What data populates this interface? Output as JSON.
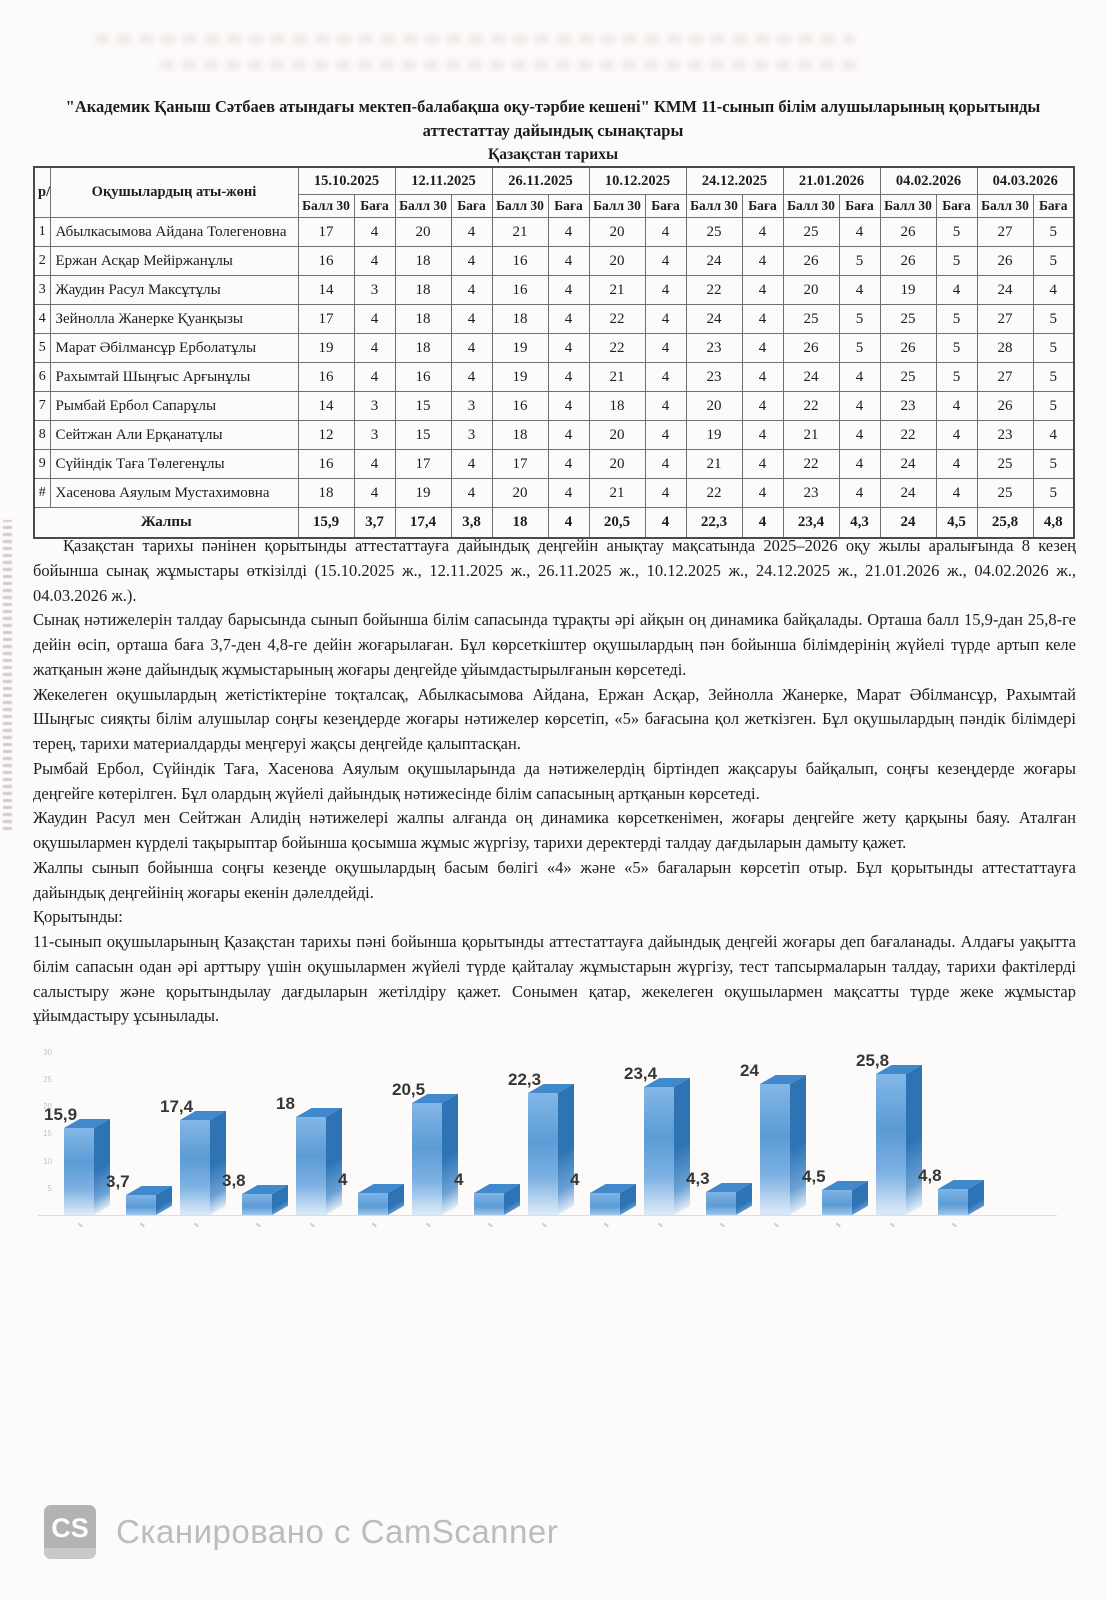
{
  "page": {
    "title_line1": "\"Академик Қаныш Сәтбаев атындағы мектеп-балабақша оқу-тәрбие кешені\" КММ  11-сынып білім алушыларының қорытынды",
    "title_line2": "аттестаттау  дайындық сынақтары",
    "subject": "Қазақстан тарихы"
  },
  "table": {
    "col_num": "р/с",
    "col_name": "Оқушылардың аты-жөні",
    "dates": [
      "15.10.2025",
      "12.11.2025",
      "26.11.2025",
      "10.12.2025",
      "24.12.2025",
      "21.01.2026",
      "04.02.2026",
      "04.03.2026"
    ],
    "sub_score": "Балл 30",
    "sub_grade": "Баға",
    "rows": [
      {
        "num": "1",
        "name": "Абылкасымова Айдана Толегеновна",
        "cells": [
          "17",
          "4",
          "20",
          "4",
          "21",
          "4",
          "20",
          "4",
          "25",
          "4",
          "25",
          "4",
          "26",
          "5",
          "27",
          "5"
        ]
      },
      {
        "num": "2",
        "name": "Ержан Асқар Мейіржанұлы",
        "cells": [
          "16",
          "4",
          "18",
          "4",
          "16",
          "4",
          "20",
          "4",
          "24",
          "4",
          "26",
          "5",
          "26",
          "5",
          "26",
          "5"
        ]
      },
      {
        "num": "3",
        "name": "Жаудин Расул Максұтұлы",
        "cells": [
          "14",
          "3",
          "18",
          "4",
          "16",
          "4",
          "21",
          "4",
          "22",
          "4",
          "20",
          "4",
          "19",
          "4",
          "24",
          "4"
        ]
      },
      {
        "num": "4",
        "name": "Зейнолла Жанерке Қуанқызы",
        "cells": [
          "17",
          "4",
          "18",
          "4",
          "18",
          "4",
          "22",
          "4",
          "24",
          "4",
          "25",
          "5",
          "25",
          "5",
          "27",
          "5"
        ]
      },
      {
        "num": "5",
        "name": "Марат Әбілмансұр Ерболатұлы",
        "cells": [
          "19",
          "4",
          "18",
          "4",
          "19",
          "4",
          "22",
          "4",
          "23",
          "4",
          "26",
          "5",
          "26",
          "5",
          "28",
          "5"
        ]
      },
      {
        "num": "6",
        "name": "Рахымтай Шыңғыс Арғынұлы",
        "cells": [
          "16",
          "4",
          "16",
          "4",
          "19",
          "4",
          "21",
          "4",
          "23",
          "4",
          "24",
          "4",
          "25",
          "5",
          "27",
          "5"
        ]
      },
      {
        "num": "7",
        "name": "Рымбай Ербол Сапарұлы",
        "cells": [
          "14",
          "3",
          "15",
          "3",
          "16",
          "4",
          "18",
          "4",
          "20",
          "4",
          "22",
          "4",
          "23",
          "4",
          "26",
          "5"
        ]
      },
      {
        "num": "8",
        "name": "Сейтжан Али Ерқанатұлы",
        "cells": [
          "12",
          "3",
          "15",
          "3",
          "18",
          "4",
          "20",
          "4",
          "19",
          "4",
          "21",
          "4",
          "22",
          "4",
          "23",
          "4"
        ]
      },
      {
        "num": "9",
        "name": "Сүйіндік Таға Төлегенұлы",
        "cells": [
          "16",
          "4",
          "17",
          "4",
          "17",
          "4",
          "20",
          "4",
          "21",
          "4",
          "22",
          "4",
          "24",
          "4",
          "25",
          "5"
        ]
      },
      {
        "num": "#",
        "name": "Хасенова Аяулым Мустахимовна",
        "cells": [
          "18",
          "4",
          "19",
          "4",
          "20",
          "4",
          "21",
          "4",
          "22",
          "4",
          "23",
          "4",
          "24",
          "4",
          "25",
          "5"
        ]
      }
    ],
    "total_label": "Жалпы",
    "totals": [
      "15,9",
      "3,7",
      "17,4",
      "3,8",
      "18",
      "4",
      "20,5",
      "4",
      "22,3",
      "4",
      "23,4",
      "4,3",
      "24",
      "4,5",
      "25,8",
      "4,8"
    ]
  },
  "report": {
    "paragraphs": [
      {
        "indent": true,
        "text": "Қазақстан тарихы пәнінен қорытынды аттестаттауға дайындық деңгейін анықтау мақсатында 2025–2026 оқу жылы аралығында 8 кезең бойынша сынақ жұмыстары өткізілді (15.10.2025 ж., 12.11.2025 ж., 26.11.2025 ж., 10.12.2025 ж., 24.12.2025 ж., 21.01.2026 ж., 04.02.2026 ж., 04.03.2026 ж.)."
      },
      {
        "indent": false,
        "text": "Сынақ нәтижелерін талдау барысында сынып бойынша білім сапасында тұрақты әрі айқын оң динамика байқалады. Орташа балл 15,9-дан 25,8-ге дейін өсіп, орташа баға 3,7-ден 4,8-ге дейін жоғарылаған. Бұл көрсеткіштер оқушылардың пән бойынша білімдерінің жүйелі түрде артып келе жатқанын және дайындық жұмыстарының жоғары деңгейде ұйымдастырылғанын көрсетеді."
      },
      {
        "indent": false,
        "text": "Жекелеген оқушылардың жетістіктеріне тоқталсақ, Абылкасымова Айдана, Ержан Асқар, Зейнолла Жанерке, Марат Әбілмансұр, Рахымтай Шыңғыс сияқты білім алушылар соңғы кезеңдерде жоғары нәтижелер көрсетіп, «5» бағасына қол жеткізген. Бұл оқушылардың пәндік білімдері терең, тарихи материалдарды меңгеруі жақсы деңгейде қалыптасқан."
      },
      {
        "indent": false,
        "text": "Рымбай Ербол, Сүйіндік Таға, Хасенова Аяулым оқушыларында да нәтижелердің біртіндеп жақсаруы байқалып, соңғы кезеңдерде жоғары деңгейге көтерілген. Бұл олардың жүйелі дайындық нәтижесінде білім сапасының артқанын көрсетеді."
      },
      {
        "indent": false,
        "text": "Жаудин Расул мен Сейтжан Алидің нәтижелері жалпы алғанда оң динамика көрсеткенімен, жоғары деңгейге жету қарқыны баяу. Аталған оқушылармен күрделі тақырыптар бойынша қосымша жұмыс жүргізу, тарихи деректерді талдау дағдыларын дамыту қажет."
      },
      {
        "indent": false,
        "text": "Жалпы сынып бойынша соңғы кезеңде оқушылардың басым бөлігі «4» және «5» бағаларын көрсетіп отыр. Бұл қорытынды аттестаттауға дайындық деңгейінің жоғары екенін дәлелдейді."
      },
      {
        "indent": false,
        "text": "Қорытынды:"
      },
      {
        "indent": false,
        "text": "11-сынып оқушыларының Қазақстан тарихы пәні бойынша қорытынды аттестаттауға дайындық деңгейі жоғары деп бағаланады. Алдағы уақытта білім сапасын одан әрі арттыру үшін оқушылармен жүйелі түрде қайталау жұмыстарын жүргізу, тест тапсырмаларын талдау, тарихи фактілерді салыстыру және қорытындылау дағдыларын жетілдіру қажет. Сонымен қатар, жекелеген оқушылармен мақсатты түрде жеке жұмыстар ұйымдастыру ұсынылады."
      }
    ]
  },
  "chart_data": {
    "type": "bar",
    "title": "",
    "categories": [
      "15.10.2025",
      "12.11.2025",
      "26.11.2025",
      "10.12.2025",
      "24.12.2025",
      "21.01.2026",
      "04.02.2026",
      "04.03.2026"
    ],
    "series": [
      {
        "name": "Балл",
        "values": [
          15.9,
          17.4,
          18,
          20.5,
          22.3,
          23.4,
          24,
          25.8
        ]
      },
      {
        "name": "Баға",
        "values": [
          3.7,
          3.8,
          4,
          4,
          4,
          4.3,
          4.5,
          4.8
        ]
      }
    ],
    "value_labels": [
      "15,9",
      "3,7",
      "17,4",
      "3,8",
      "18",
      "4",
      "20,5",
      "4",
      "22,3",
      "4",
      "23,4",
      "4,3",
      "24",
      "4,5",
      "25,8",
      "4,8"
    ],
    "ylim": [
      0,
      30
    ],
    "yticks": [
      5,
      10,
      15,
      20,
      25,
      30
    ],
    "grid": false,
    "legend": "none",
    "bar_front_color": "#5b9bd5",
    "bar_side_color": "#2e74b5"
  },
  "footer": {
    "cs_badge": "CS",
    "scanner_label": "Сканировано с CamScanner"
  }
}
